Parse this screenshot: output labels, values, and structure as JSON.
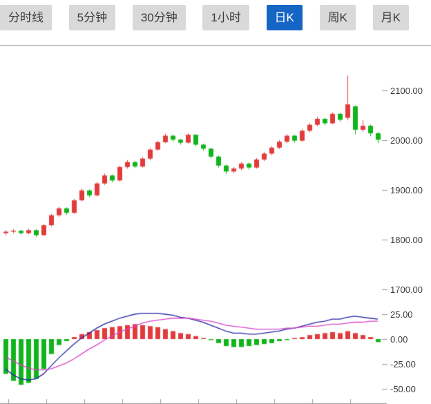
{
  "toolbar": {
    "tabs": [
      {
        "label": "分时线",
        "active": false
      },
      {
        "label": "5分钟",
        "active": false
      },
      {
        "label": "30分钟",
        "active": false
      },
      {
        "label": "1小时",
        "active": false
      },
      {
        "label": "日K",
        "active": true
      },
      {
        "label": "周K",
        "active": false
      },
      {
        "label": "月K",
        "active": false
      }
    ]
  },
  "colors": {
    "accent": "#1565c4",
    "up": "#e23b3b",
    "down": "#11b41c",
    "dif_line": "#2323a8",
    "dea_line": "#d843c8",
    "axis_line": "#999999",
    "tick_text": "#3a3a3a"
  },
  "chart_data": {
    "type": "candlestick",
    "title": "",
    "panels": {
      "price": {
        "ylim": [
          1680,
          2160
        ],
        "tick_values": [
          2100,
          2000,
          1900,
          1800,
          1700
        ],
        "tick_labels": [
          "2100.00",
          "2000.00",
          "1900.00",
          "1800.00",
          "1700.00"
        ]
      },
      "macd": {
        "ylim": [
          -55,
          30
        ],
        "tick_values": [
          25,
          0,
          -25,
          -50
        ],
        "tick_labels": [
          "25.00",
          "0.00",
          "-25.00",
          "-50.00"
        ]
      }
    },
    "candle_columns": [
      "open",
      "close",
      "low",
      "high"
    ],
    "candles": [
      [
        1813,
        1816,
        1809,
        1819
      ],
      [
        1816,
        1818,
        1813,
        1821
      ],
      [
        1818,
        1813,
        1810,
        1820
      ],
      [
        1813,
        1819,
        1811,
        1822
      ],
      [
        1819,
        1809,
        1805,
        1821
      ],
      [
        1809,
        1829,
        1807,
        1832
      ],
      [
        1829,
        1849,
        1827,
        1852
      ],
      [
        1849,
        1863,
        1846,
        1866
      ],
      [
        1863,
        1854,
        1850,
        1865
      ],
      [
        1854,
        1879,
        1852,
        1882
      ],
      [
        1879,
        1899,
        1877,
        1903
      ],
      [
        1899,
        1889,
        1885,
        1901
      ],
      [
        1889,
        1913,
        1887,
        1916
      ],
      [
        1913,
        1929,
        1910,
        1933
      ],
      [
        1929,
        1919,
        1915,
        1931
      ],
      [
        1919,
        1946,
        1917,
        1949
      ],
      [
        1946,
        1956,
        1943,
        1960
      ],
      [
        1956,
        1947,
        1944,
        1958
      ],
      [
        1947,
        1963,
        1945,
        1966
      ],
      [
        1963,
        1981,
        1960,
        1984
      ],
      [
        1981,
        1996,
        1979,
        1999
      ],
      [
        1996,
        2009,
        1994,
        2013
      ],
      [
        2009,
        2001,
        1997,
        2011
      ],
      [
        2001,
        1995,
        1991,
        2003
      ],
      [
        1995,
        2011,
        1993,
        2014
      ],
      [
        2011,
        1991,
        1987,
        2012
      ],
      [
        1991,
        1983,
        1979,
        1993
      ],
      [
        1983,
        1967,
        1963,
        1985
      ],
      [
        1967,
        1949,
        1945,
        1969
      ],
      [
        1949,
        1937,
        1932,
        1951
      ],
      [
        1937,
        1943,
        1934,
        1946
      ],
      [
        1943,
        1953,
        1940,
        1956
      ],
      [
        1953,
        1945,
        1941,
        1955
      ],
      [
        1945,
        1961,
        1943,
        1964
      ],
      [
        1961,
        1973,
        1958,
        1976
      ],
      [
        1973,
        1985,
        1970,
        1988
      ],
      [
        1985,
        1997,
        1982,
        2000
      ],
      [
        1997,
        2009,
        1994,
        2012
      ],
      [
        2009,
        1999,
        1995,
        2011
      ],
      [
        1999,
        2019,
        1997,
        2022
      ],
      [
        2019,
        2031,
        2016,
        2034
      ],
      [
        2031,
        2043,
        2028,
        2047
      ],
      [
        2043,
        2034,
        2030,
        2045
      ],
      [
        2034,
        2053,
        2032,
        2056
      ],
      [
        2053,
        2041,
        2037,
        2055
      ],
      [
        2045,
        2072,
        2040,
        2130
      ],
      [
        2068,
        2021,
        2012,
        2070
      ],
      [
        2021,
        2029,
        2017,
        2040
      ],
      [
        2029,
        2014,
        2008,
        2031
      ],
      [
        2014,
        2001,
        1994,
        2016
      ]
    ],
    "macd": {
      "dif": [
        -30,
        -36,
        -40,
        -41,
        -40,
        -35,
        -27,
        -19,
        -12,
        -5,
        1,
        6,
        11,
        15,
        18,
        21,
        23,
        25,
        26,
        26,
        26,
        25,
        24,
        22,
        21,
        19,
        17,
        14,
        11,
        8,
        6,
        6,
        5,
        5,
        6,
        7,
        8,
        10,
        11,
        13,
        15,
        17,
        18,
        20,
        20,
        22,
        23,
        22,
        21,
        20
      ],
      "dea": [
        -18,
        -22,
        -26,
        -29,
        -31,
        -31,
        -30,
        -27,
        -24,
        -20,
        -15,
        -10,
        -6,
        -1,
        3,
        7,
        10,
        13,
        16,
        18,
        19,
        20,
        21,
        21,
        21,
        20,
        19,
        18,
        16,
        14,
        13,
        12,
        11,
        10,
        10,
        10,
        10,
        11,
        11,
        12,
        13,
        13,
        14,
        15,
        15,
        16,
        17,
        17,
        18,
        18
      ],
      "histogram": [
        -35,
        -42,
        -46,
        -44,
        -40,
        -30,
        -15,
        -6,
        -2,
        2,
        5,
        7,
        9,
        11,
        12,
        13,
        14,
        15,
        14,
        13,
        12,
        10,
        8,
        6,
        5,
        3,
        1,
        -1,
        -4,
        -7,
        -8,
        -8,
        -7,
        -6,
        -5,
        -4,
        -2,
        -1,
        1,
        2,
        4,
        5,
        6,
        7,
        6,
        8,
        6,
        4,
        2,
        -3
      ]
    }
  }
}
